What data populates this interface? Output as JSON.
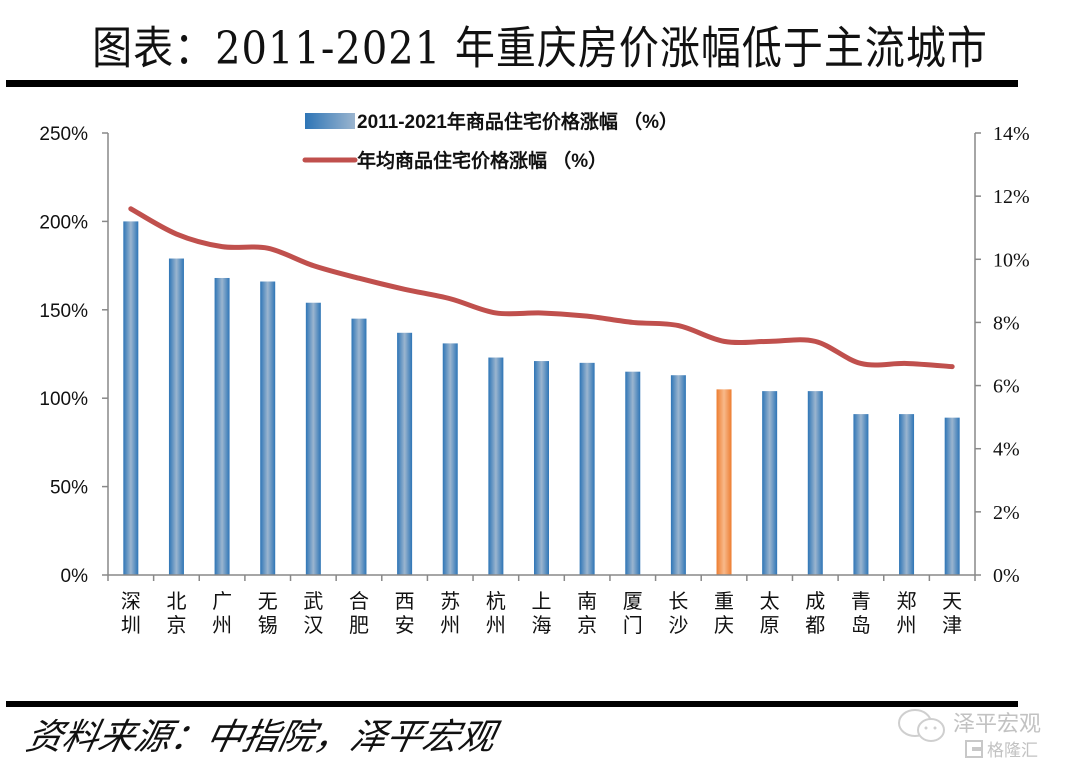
{
  "header": {
    "title": "图表：2011-2021 年重庆房价涨幅低于主流城市"
  },
  "footer": {
    "source": "资料来源：中指院，泽平宏观"
  },
  "watermark": {
    "brand": "泽平宏观",
    "sub_brand": "格隆汇",
    "icon": "wechat-icon"
  },
  "colors": {
    "bar": "#2e75b6",
    "bar_light": "#9bb5cf",
    "highlight_bar": "#ed7d31",
    "highlight_bar_light": "#f8b98a",
    "line": "#c0504d",
    "axis": "#888888"
  },
  "chart_data": {
    "type": "bar",
    "title": "图表：2011-2021 年重庆房价涨幅低于主流城市",
    "categories": [
      "深圳",
      "北京",
      "广州",
      "无锡",
      "武汉",
      "合肥",
      "西安",
      "苏州",
      "杭州",
      "上海",
      "南京",
      "厦门",
      "长沙",
      "重庆",
      "太原",
      "成都",
      "青岛",
      "郑州",
      "天津"
    ],
    "highlight_category": "重庆",
    "series": [
      {
        "name": "2011-2021年商品住宅价格涨幅 （%）",
        "type": "bar",
        "axis": "left",
        "values": [
          200,
          179,
          168,
          166,
          154,
          145,
          137,
          131,
          123,
          121,
          120,
          115,
          113,
          105,
          104,
          104,
          91,
          91,
          89
        ]
      },
      {
        "name": "年均商品住宅价格涨幅 （%）",
        "type": "line",
        "axis": "right",
        "values": [
          11.6,
          10.8,
          10.4,
          10.35,
          9.8,
          9.4,
          9.05,
          8.75,
          8.3,
          8.3,
          8.2,
          8.0,
          7.9,
          7.4,
          7.4,
          7.4,
          6.7,
          6.7,
          6.6
        ]
      }
    ],
    "left_axis": {
      "ylim": [
        0,
        250
      ],
      "ticks": [
        "0%",
        "50%",
        "100%",
        "150%",
        "200%",
        "250%"
      ],
      "tick_values": [
        0,
        50,
        100,
        150,
        200,
        250
      ]
    },
    "right_axis": {
      "ylim": [
        0,
        14
      ],
      "ticks": [
        "0%",
        "2%",
        "4%",
        "6%",
        "8%",
        "10%",
        "12%",
        "14%"
      ],
      "tick_values": [
        0,
        2,
        4,
        6,
        8,
        10,
        12,
        14
      ]
    },
    "legend": {
      "position": "top-center"
    },
    "grid": false,
    "xlabel": "",
    "ylabel": ""
  }
}
